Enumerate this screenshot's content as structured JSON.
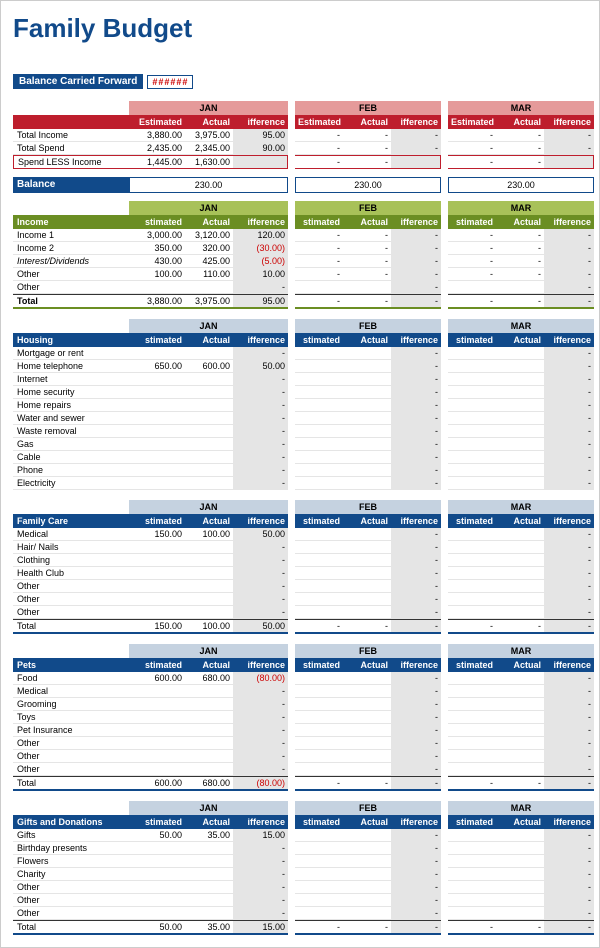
{
  "title": "Family Budget",
  "bcf_label": "Balance Carried Forward",
  "bcf_value": "######",
  "months": [
    "JAN",
    "FEB",
    "MAR"
  ],
  "col_heads": {
    "est": "stimated",
    "act": "Actual",
    "diff": "ifference",
    "est_full": "Estimated"
  },
  "summary": {
    "rows": [
      {
        "label": "Total Income",
        "m1": [
          "3,880.00",
          "3,975.00",
          "95.00"
        ],
        "m2": [
          "-",
          "-",
          "-"
        ],
        "m3": [
          "-",
          "-",
          "-"
        ]
      },
      {
        "label": "Total Spend",
        "m1": [
          "2,435.00",
          "2,345.00",
          "90.00"
        ],
        "m2": [
          "-",
          "-",
          "-"
        ],
        "m3": [
          "-",
          "-",
          "-"
        ]
      },
      {
        "label": "Spend LESS Income",
        "m1": [
          "1,445.00",
          "1,630.00",
          ""
        ],
        "m2": [
          "-",
          "-",
          ""
        ],
        "m3": [
          "-",
          "-",
          ""
        ]
      }
    ]
  },
  "balance": {
    "label": "Balance",
    "vals": [
      "230.00",
      "230.00",
      "230.00"
    ]
  },
  "income": {
    "name": "Income",
    "rows": [
      {
        "label": "Income 1",
        "m1": [
          "3,000.00",
          "3,120.00",
          "120.00"
        ],
        "m2": [
          "-",
          "-",
          "-"
        ],
        "m3": [
          "-",
          "-",
          "-"
        ]
      },
      {
        "label": "Income 2",
        "m1": [
          "350.00",
          "320.00",
          "(30.00)"
        ],
        "m2": [
          "-",
          "-",
          "-"
        ],
        "m3": [
          "-",
          "-",
          "-"
        ],
        "neg": true
      },
      {
        "label": "Interest/Dividends",
        "italic": true,
        "m1": [
          "430.00",
          "425.00",
          "(5.00)"
        ],
        "m2": [
          "-",
          "-",
          "-"
        ],
        "m3": [
          "-",
          "-",
          "-"
        ],
        "neg": true
      },
      {
        "label": "Other",
        "m1": [
          "100.00",
          "110.00",
          "10.00"
        ],
        "m2": [
          "-",
          "-",
          "-"
        ],
        "m3": [
          "-",
          "-",
          "-"
        ]
      },
      {
        "label": "Other",
        "m1": [
          "",
          "",
          "-"
        ],
        "m2": [
          "",
          "",
          "-"
        ],
        "m3": [
          "",
          "",
          "-"
        ]
      }
    ],
    "total": {
      "label": "Total",
      "m1": [
        "3,880.00",
        "3,975.00",
        "95.00"
      ],
      "m2": [
        "-",
        "-",
        "-"
      ],
      "m3": [
        "-",
        "-",
        "-"
      ]
    }
  },
  "sections": [
    {
      "name": "Housing",
      "rows": [
        {
          "label": "Mortgage or rent",
          "m1": [
            "",
            "",
            "-"
          ],
          "m2": [
            "",
            "",
            "-"
          ],
          "m3": [
            "",
            "",
            "-"
          ]
        },
        {
          "label": "Home telephone",
          "m1": [
            "650.00",
            "600.00",
            "50.00"
          ],
          "m2": [
            "",
            "",
            "-"
          ],
          "m3": [
            "",
            "",
            "-"
          ]
        },
        {
          "label": "Internet",
          "m1": [
            "",
            "",
            "-"
          ],
          "m2": [
            "",
            "",
            "-"
          ],
          "m3": [
            "",
            "",
            "-"
          ]
        },
        {
          "label": "Home security",
          "m1": [
            "",
            "",
            "-"
          ],
          "m2": [
            "",
            "",
            "-"
          ],
          "m3": [
            "",
            "",
            "-"
          ]
        },
        {
          "label": "Home repairs",
          "m1": [
            "",
            "",
            "-"
          ],
          "m2": [
            "",
            "",
            "-"
          ],
          "m3": [
            "",
            "",
            "-"
          ]
        },
        {
          "label": "Water and sewer",
          "m1": [
            "",
            "",
            "-"
          ],
          "m2": [
            "",
            "",
            "-"
          ],
          "m3": [
            "",
            "",
            "-"
          ]
        },
        {
          "label": "Waste removal",
          "m1": [
            "",
            "",
            "-"
          ],
          "m2": [
            "",
            "",
            "-"
          ],
          "m3": [
            "",
            "",
            "-"
          ]
        },
        {
          "label": "Gas",
          "m1": [
            "",
            "",
            "-"
          ],
          "m2": [
            "",
            "",
            "-"
          ],
          "m3": [
            "",
            "",
            "-"
          ]
        },
        {
          "label": "Cable",
          "m1": [
            "",
            "",
            "-"
          ],
          "m2": [
            "",
            "",
            "-"
          ],
          "m3": [
            "",
            "",
            "-"
          ]
        },
        {
          "label": "Phone",
          "m1": [
            "",
            "",
            "-"
          ],
          "m2": [
            "",
            "",
            "-"
          ],
          "m3": [
            "",
            "",
            "-"
          ]
        },
        {
          "label": "Electricity",
          "m1": [
            "",
            "",
            "-"
          ],
          "m2": [
            "",
            "",
            "-"
          ],
          "m3": [
            "",
            "",
            "-"
          ]
        }
      ]
    },
    {
      "name": "Family Care",
      "rows": [
        {
          "label": "Medical",
          "m1": [
            "150.00",
            "100.00",
            "50.00"
          ],
          "m2": [
            "",
            "",
            "-"
          ],
          "m3": [
            "",
            "",
            "-"
          ]
        },
        {
          "label": "Hair/ Nails",
          "m1": [
            "",
            "",
            "-"
          ],
          "m2": [
            "",
            "",
            "-"
          ],
          "m3": [
            "",
            "",
            "-"
          ]
        },
        {
          "label": "Clothing",
          "m1": [
            "",
            "",
            "-"
          ],
          "m2": [
            "",
            "",
            "-"
          ],
          "m3": [
            "",
            "",
            "-"
          ]
        },
        {
          "label": "Health Club",
          "m1": [
            "",
            "",
            "-"
          ],
          "m2": [
            "",
            "",
            "-"
          ],
          "m3": [
            "",
            "",
            "-"
          ]
        },
        {
          "label": "Other",
          "m1": [
            "",
            "",
            "-"
          ],
          "m2": [
            "",
            "",
            "-"
          ],
          "m3": [
            "",
            "",
            "-"
          ]
        },
        {
          "label": "Other",
          "m1": [
            "",
            "",
            "-"
          ],
          "m2": [
            "",
            "",
            "-"
          ],
          "m3": [
            "",
            "",
            "-"
          ]
        },
        {
          "label": "Other",
          "m1": [
            "",
            "",
            "-"
          ],
          "m2": [
            "",
            "",
            "-"
          ],
          "m3": [
            "",
            "",
            "-"
          ]
        }
      ],
      "total": {
        "label": "Total",
        "m1": [
          "150.00",
          "100.00",
          "50.00"
        ],
        "m2": [
          "-",
          "-",
          "-"
        ],
        "m3": [
          "-",
          "-",
          "-"
        ]
      }
    },
    {
      "name": "Pets",
      "rows": [
        {
          "label": "Food",
          "m1": [
            "600.00",
            "680.00",
            "(80.00)"
          ],
          "m2": [
            "",
            "",
            "-"
          ],
          "m3": [
            "",
            "",
            "-"
          ],
          "neg": true
        },
        {
          "label": "Medical",
          "m1": [
            "",
            "",
            "-"
          ],
          "m2": [
            "",
            "",
            "-"
          ],
          "m3": [
            "",
            "",
            "-"
          ]
        },
        {
          "label": "Grooming",
          "m1": [
            "",
            "",
            "-"
          ],
          "m2": [
            "",
            "",
            "-"
          ],
          "m3": [
            "",
            "",
            "-"
          ]
        },
        {
          "label": "Toys",
          "m1": [
            "",
            "",
            "-"
          ],
          "m2": [
            "",
            "",
            "-"
          ],
          "m3": [
            "",
            "",
            "-"
          ]
        },
        {
          "label": "Pet Insurance",
          "m1": [
            "",
            "",
            "-"
          ],
          "m2": [
            "",
            "",
            "-"
          ],
          "m3": [
            "",
            "",
            "-"
          ]
        },
        {
          "label": "Other",
          "m1": [
            "",
            "",
            "-"
          ],
          "m2": [
            "",
            "",
            "-"
          ],
          "m3": [
            "",
            "",
            "-"
          ]
        },
        {
          "label": "Other",
          "m1": [
            "",
            "",
            "-"
          ],
          "m2": [
            "",
            "",
            "-"
          ],
          "m3": [
            "",
            "",
            "-"
          ]
        },
        {
          "label": "Other",
          "m1": [
            "",
            "",
            "-"
          ],
          "m2": [
            "",
            "",
            "-"
          ],
          "m3": [
            "",
            "",
            "-"
          ]
        }
      ],
      "total": {
        "label": "Total",
        "m1": [
          "600.00",
          "680.00",
          "(80.00)"
        ],
        "m2": [
          "-",
          "-",
          "-"
        ],
        "m3": [
          "-",
          "-",
          "-"
        ],
        "neg": true
      }
    },
    {
      "name": "Gifts and Donations",
      "rows": [
        {
          "label": "Gifts",
          "m1": [
            "50.00",
            "35.00",
            "15.00"
          ],
          "m2": [
            "",
            "",
            "-"
          ],
          "m3": [
            "",
            "",
            "-"
          ]
        },
        {
          "label": "Birthday presents",
          "m1": [
            "",
            "",
            "-"
          ],
          "m2": [
            "",
            "",
            "-"
          ],
          "m3": [
            "",
            "",
            "-"
          ]
        },
        {
          "label": "Flowers",
          "m1": [
            "",
            "",
            "-"
          ],
          "m2": [
            "",
            "",
            "-"
          ],
          "m3": [
            "",
            "",
            "-"
          ]
        },
        {
          "label": "Charity",
          "m1": [
            "",
            "",
            "-"
          ],
          "m2": [
            "",
            "",
            "-"
          ],
          "m3": [
            "",
            "",
            "-"
          ]
        },
        {
          "label": "Other",
          "m1": [
            "",
            "",
            "-"
          ],
          "m2": [
            "",
            "",
            "-"
          ],
          "m3": [
            "",
            "",
            "-"
          ]
        },
        {
          "label": "Other",
          "m1": [
            "",
            "",
            "-"
          ],
          "m2": [
            "",
            "",
            "-"
          ],
          "m3": [
            "",
            "",
            "-"
          ]
        },
        {
          "label": "Other",
          "m1": [
            "",
            "",
            "-"
          ],
          "m2": [
            "",
            "",
            "-"
          ],
          "m3": [
            "",
            "",
            "-"
          ]
        }
      ],
      "total": {
        "label": "Total",
        "m1": [
          "50.00",
          "35.00",
          "15.00"
        ],
        "m2": [
          "-",
          "-",
          "-"
        ],
        "m3": [
          "-",
          "-",
          "-"
        ]
      }
    }
  ]
}
